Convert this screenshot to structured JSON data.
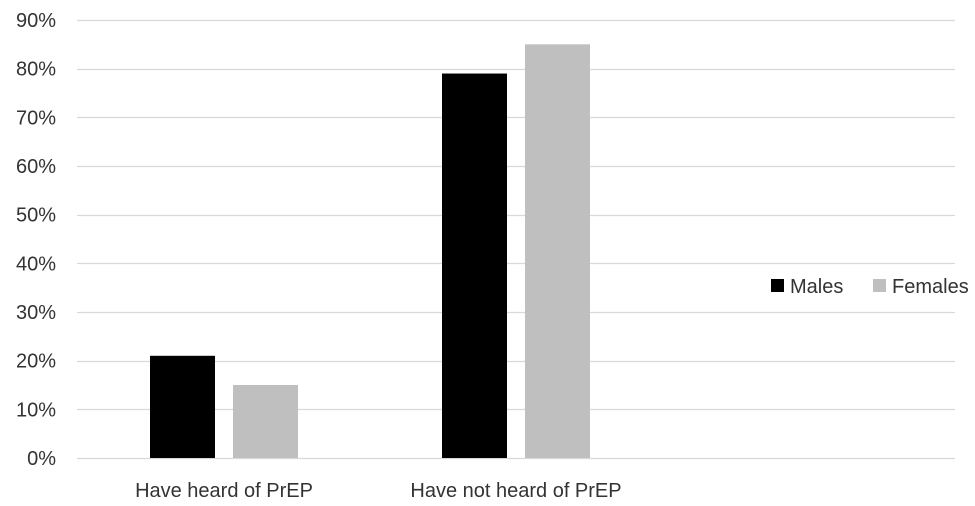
{
  "chart_data": {
    "type": "bar",
    "title": "",
    "xlabel": "",
    "ylabel": "",
    "categories": [
      "Have heard of PrEP",
      "Have not heard of PrEP"
    ],
    "series": [
      {
        "name": "Males",
        "values": [
          21,
          79
        ],
        "color": "#000000"
      },
      {
        "name": "Females",
        "values": [
          15,
          85
        ],
        "color": "#bfbfbf"
      }
    ],
    "ylim": [
      0,
      90
    ],
    "yticks": [
      0,
      10,
      20,
      30,
      40,
      50,
      60,
      70,
      80,
      90
    ],
    "ytick_labels": [
      "0%",
      "10%",
      "20%",
      "30%",
      "40%",
      "50%",
      "60%",
      "70%",
      "80%",
      "90%"
    ],
    "grid": true,
    "grid_color": "#d9d9d9",
    "legend": "right"
  }
}
